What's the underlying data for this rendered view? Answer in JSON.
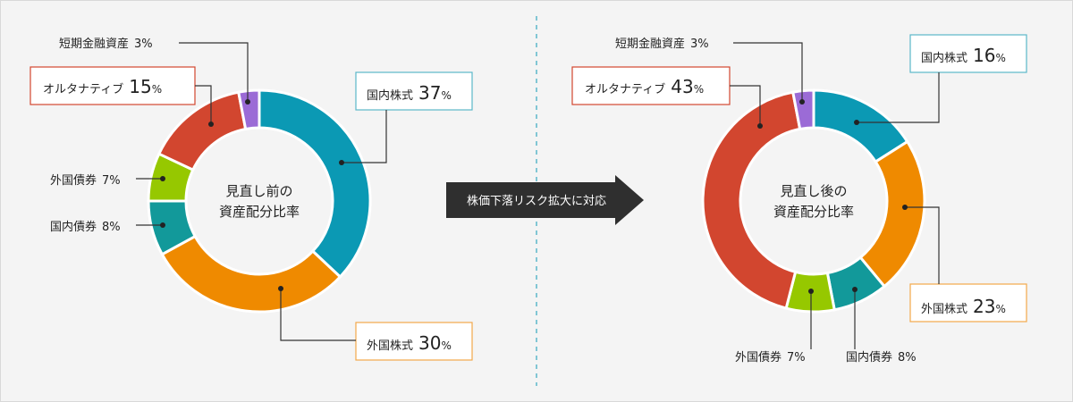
{
  "divider_color": "#5bb7c9",
  "arrow": {
    "label": "株価下落リスク拡大に対応",
    "color": "#2f2f2f"
  },
  "chart_data": [
    {
      "type": "pie",
      "variant": "donut",
      "title": [
        "見直し前の",
        "資産配分比率"
      ],
      "unit": "%",
      "slices": [
        {
          "name": "国内株式",
          "value": 37,
          "color": "#0b99b4",
          "boxed": true,
          "box_color": "#5bb7c9"
        },
        {
          "name": "外国株式",
          "value": 30,
          "color": "#ef8a00",
          "boxed": true,
          "box_color": "#f2a84a"
        },
        {
          "name": "国内債券",
          "value": 8,
          "color": "#12999a",
          "boxed": false
        },
        {
          "name": "外国債券",
          "value": 7,
          "color": "#96c800",
          "boxed": false
        },
        {
          "name": "オルタナティブ",
          "value": 15,
          "color": "#d2462f",
          "boxed": true,
          "box_color": "#d2462f"
        },
        {
          "name": "短期金融資産",
          "value": 3,
          "color": "#9b6bd6",
          "boxed": false
        }
      ]
    },
    {
      "type": "pie",
      "variant": "donut",
      "title": [
        "見直し後の",
        "資産配分比率"
      ],
      "unit": "%",
      "slices": [
        {
          "name": "国内株式",
          "value": 16,
          "color": "#0b99b4",
          "boxed": true,
          "box_color": "#5bb7c9"
        },
        {
          "name": "外国株式",
          "value": 23,
          "color": "#ef8a00",
          "boxed": true,
          "box_color": "#f2a84a"
        },
        {
          "name": "国内債券",
          "value": 8,
          "color": "#12999a",
          "boxed": false
        },
        {
          "name": "外国債券",
          "value": 7,
          "color": "#96c800",
          "boxed": false
        },
        {
          "name": "オルタナティブ",
          "value": 43,
          "color": "#d2462f",
          "boxed": true,
          "box_color": "#d2462f"
        },
        {
          "name": "短期金融資産",
          "value": 3,
          "color": "#9b6bd6",
          "boxed": false
        }
      ]
    }
  ]
}
